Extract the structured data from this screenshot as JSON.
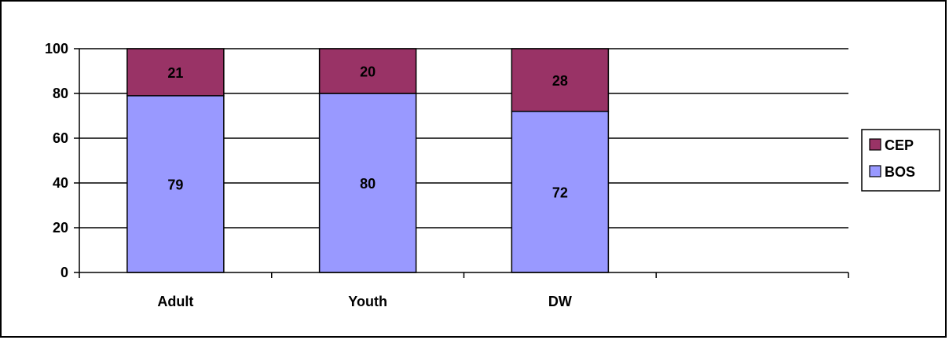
{
  "chart_data": {
    "type": "bar",
    "stacked": true,
    "categories": [
      "Adult",
      "Youth",
      "DW"
    ],
    "slots": 4,
    "series": [
      {
        "name": "BOS",
        "values": [
          79,
          80,
          72
        ],
        "color": "#9999ff"
      },
      {
        "name": "CEP",
        "values": [
          21,
          20,
          28
        ],
        "color": "#993366"
      }
    ],
    "ylim": [
      0,
      100
    ],
    "yticks": [
      "0",
      "20",
      "40",
      "60",
      "80",
      "100"
    ],
    "grid": true,
    "legend": {
      "position": "right",
      "items": [
        "CEP",
        "BOS"
      ]
    }
  }
}
